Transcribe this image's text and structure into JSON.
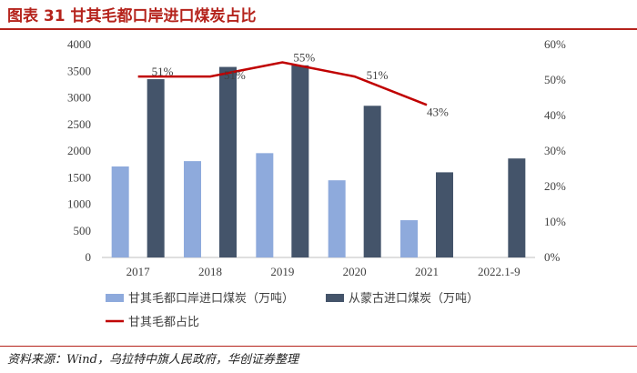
{
  "header": {
    "title": "图表 31   甘其毛都口岸进口煤炭占比"
  },
  "footer": {
    "source": "资料来源：Wind，乌拉特中旗人民政府，华创证券整理"
  },
  "chart_data": {
    "type": "bar",
    "title": "",
    "categories": [
      "2017",
      "2018",
      "2019",
      "2020",
      "2021",
      "2022.1-9"
    ],
    "y_left": {
      "min": 0,
      "max": 4000,
      "step": 500,
      "ticks": [
        "0",
        "500",
        "1000",
        "1500",
        "2000",
        "2500",
        "3000",
        "3500",
        "4000"
      ]
    },
    "y_right": {
      "min": 0,
      "max": 60,
      "step": 10,
      "ticks": [
        "0%",
        "10%",
        "20%",
        "30%",
        "40%",
        "50%",
        "60%"
      ]
    },
    "series": [
      {
        "name": "甘其毛都口岸进口煤炭（万吨）",
        "type": "bar",
        "axis": "left",
        "color": "#8eaadc",
        "values": [
          1710,
          1810,
          1960,
          1450,
          700,
          null
        ]
      },
      {
        "name": "从蒙古进口煤炭（万吨）",
        "type": "bar",
        "axis": "left",
        "color": "#44546a",
        "values": [
          3350,
          3580,
          3610,
          2850,
          1600,
          1860
        ]
      },
      {
        "name": "甘其毛都占比",
        "type": "line",
        "axis": "right",
        "color": "#c00000",
        "values": [
          51,
          51,
          55,
          51,
          43,
          null
        ],
        "labels": [
          "51%",
          "51%",
          "55%",
          "51%",
          "43%",
          ""
        ]
      }
    ],
    "grid": false,
    "legend_position": "bottom"
  }
}
